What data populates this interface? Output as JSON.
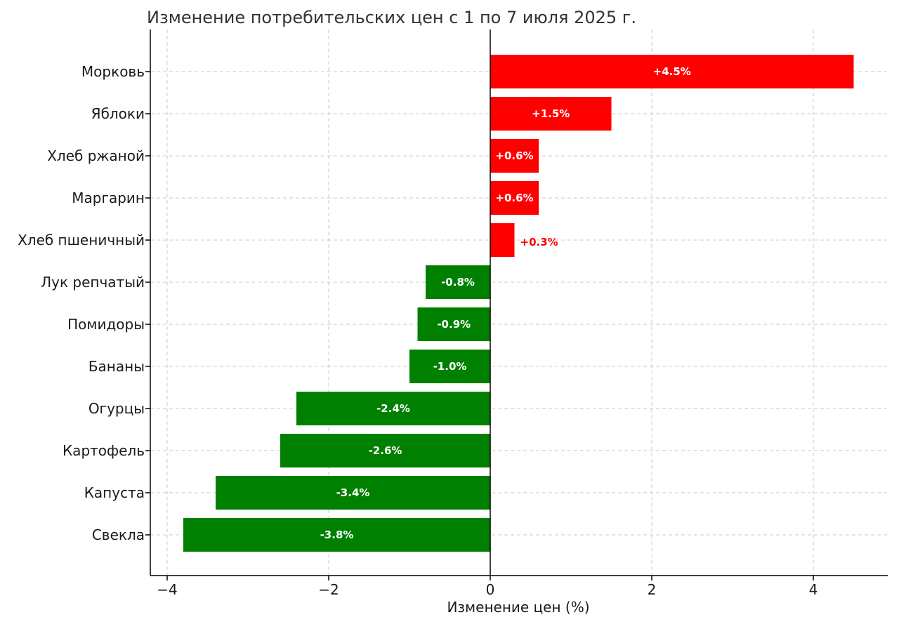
{
  "chart_data": {
    "type": "bar",
    "orientation": "horizontal",
    "title": "Изменение потребительских цен с 1 по 7 июля 2025 г.",
    "xlabel": "Изменение цен (%)",
    "ylabel": "",
    "xlim": [
      -4.2,
      4.9
    ],
    "xticks": [
      -4,
      -2,
      0,
      2,
      4
    ],
    "xtick_labels": [
      "−4",
      "−2",
      "0",
      "2",
      "4"
    ],
    "grid": true,
    "categories": [
      "Морковь",
      "Яблоки",
      "Хлеб ржаной",
      "Маргарин",
      "Хлеб пшеничный",
      "Лук репчатый",
      "Помидоры",
      "Бананы",
      "Огурцы",
      "Картофель",
      "Капуста",
      "Свекла"
    ],
    "values": [
      4.5,
      1.5,
      0.6,
      0.6,
      0.3,
      -0.8,
      -0.9,
      -1.0,
      -2.4,
      -2.6,
      -3.4,
      -3.8
    ],
    "value_labels": [
      "+4.5%",
      "+1.5%",
      "+0.6%",
      "+0.6%",
      "+0.3%",
      "-0.8%",
      "-0.9%",
      "-1.0%",
      "-2.4%",
      "-2.6%",
      "-3.4%",
      "-3.8%"
    ],
    "colors": {
      "positive": "#ff0000",
      "negative": "#008000"
    }
  }
}
